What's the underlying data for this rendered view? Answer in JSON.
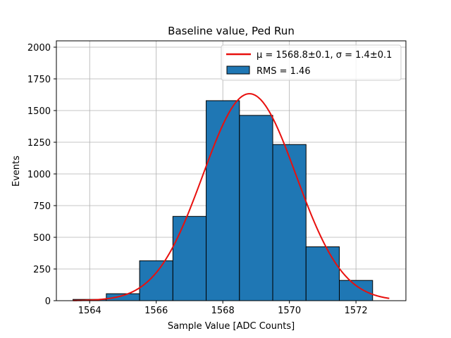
{
  "chart_data": {
    "type": "bar",
    "title": "Baseline value, Ped Run",
    "xlabel": "Sample Value [ADC Counts]",
    "ylabel": "Events",
    "xlim": [
      1563.0,
      1573.5
    ],
    "ylim": [
      0,
      2050
    ],
    "grid": true,
    "bar_color": "#1f77b4",
    "bar_edge_color": "#000000",
    "fit_color": "#e8100e",
    "x_ticks": [
      1564,
      1566,
      1568,
      1570,
      1572
    ],
    "x_tick_labels": [
      "1564",
      "1566",
      "1568",
      "1570",
      "1572"
    ],
    "y_ticks": [
      0,
      250,
      500,
      750,
      1000,
      1250,
      1500,
      1750,
      2000
    ],
    "y_tick_labels": [
      "0",
      "250",
      "500",
      "750",
      "1000",
      "1250",
      "1500",
      "1750",
      "2000"
    ],
    "bins": [
      {
        "left": 1563.5,
        "right": 1564.5,
        "value": 10
      },
      {
        "left": 1564.5,
        "right": 1565.5,
        "value": 55
      },
      {
        "left": 1565.5,
        "right": 1566.5,
        "value": 315
      },
      {
        "left": 1566.5,
        "right": 1567.5,
        "value": 665
      },
      {
        "left": 1567.5,
        "right": 1568.5,
        "value": 1578
      },
      {
        "left": 1568.5,
        "right": 1569.5,
        "value": 1462
      },
      {
        "left": 1569.5,
        "right": 1570.5,
        "value": 1232
      },
      {
        "left": 1570.5,
        "right": 1571.5,
        "value": 425
      },
      {
        "left": 1571.5,
        "right": 1572.5,
        "value": 160
      }
    ],
    "fit": {
      "mu": 1568.8,
      "sigma": 1.4,
      "amplitude": 1633,
      "x_start": 1563.5,
      "x_end": 1573.0
    },
    "legend": {
      "placement": "top-right",
      "entries": [
        {
          "label": "μ = 1568.8±0.1, σ = 1.4±0.1",
          "kind": "line"
        },
        {
          "label": "RMS = 1.46",
          "kind": "patch"
        }
      ]
    }
  }
}
